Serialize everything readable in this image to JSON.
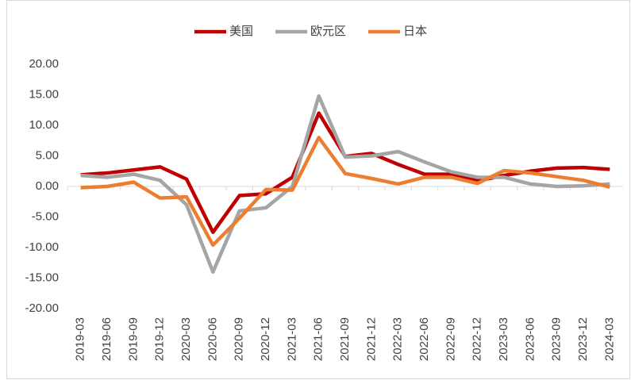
{
  "chart_data": {
    "type": "line",
    "categories": [
      "2019-03",
      "2019-06",
      "2019-09",
      "2019-12",
      "2020-03",
      "2020-06",
      "2020-09",
      "2020-12",
      "2021-03",
      "2021-06",
      "2021-09",
      "2021-12",
      "2022-03",
      "2022-06",
      "2022-09",
      "2022-12",
      "2023-03",
      "2023-06",
      "2023-09",
      "2023-12",
      "2024-03"
    ],
    "series": [
      {
        "name": "美国",
        "color": "#c00000",
        "values": [
          1.9,
          2.2,
          2.7,
          3.2,
          1.2,
          -7.5,
          -1.5,
          -1.2,
          1.5,
          12.0,
          4.9,
          5.4,
          3.6,
          2.0,
          2.0,
          0.9,
          1.8,
          2.5,
          3.0,
          3.1,
          2.8
        ]
      },
      {
        "name": "欧元区",
        "color": "#a5a5a5",
        "values": [
          1.8,
          1.5,
          2.0,
          1.0,
          -3.0,
          -14.0,
          -4.0,
          -3.5,
          0.0,
          14.8,
          4.8,
          5.0,
          5.7,
          4.0,
          2.4,
          1.5,
          1.5,
          0.4,
          0.0,
          0.1,
          0.4
        ]
      },
      {
        "name": "日本",
        "color": "#ed7d31",
        "values": [
          -0.2,
          0.0,
          0.7,
          -1.9,
          -1.7,
          -9.6,
          -5.2,
          -0.5,
          -0.6,
          8.0,
          2.1,
          1.3,
          0.4,
          1.5,
          1.5,
          0.5,
          2.6,
          2.2,
          1.6,
          1.0,
          -0.1
        ]
      }
    ],
    "ylim": [
      -20,
      20
    ],
    "yticks": [
      {
        "value": -20,
        "label": "-20.00"
      },
      {
        "value": -15,
        "label": "-15.00"
      },
      {
        "value": -10,
        "label": "-10.00"
      },
      {
        "value": -5,
        "label": "-5.00"
      },
      {
        "value": 0,
        "label": "0.00"
      },
      {
        "value": 5,
        "label": "5.00"
      },
      {
        "value": 10,
        "label": "10.00"
      },
      {
        "value": 15,
        "label": "15.00"
      },
      {
        "value": 20,
        "label": "20.00"
      }
    ],
    "grid": false,
    "legend": "top"
  }
}
